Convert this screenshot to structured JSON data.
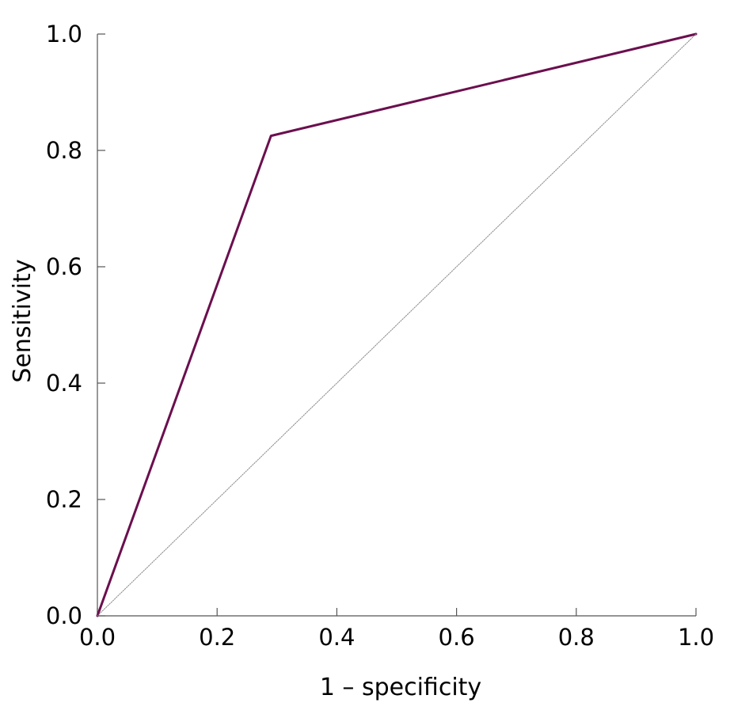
{
  "chart_data": {
    "type": "line",
    "xlabel": "1 – specificity",
    "ylabel": "Sensitivity",
    "xlim": [
      0.0,
      1.0
    ],
    "ylim": [
      0.0,
      1.0
    ],
    "x_ticks": [
      "0.0",
      "0.2",
      "0.4",
      "0.6",
      "0.8",
      "1.0"
    ],
    "y_ticks": [
      "0.0",
      "0.2",
      "0.4",
      "0.6",
      "0.8",
      "1.0"
    ],
    "grid": false,
    "series": [
      {
        "style": "solid",
        "color": "#6b0f4e",
        "x": [
          0.0,
          0.29,
          1.0
        ],
        "y": [
          0.0,
          0.825,
          1.0
        ]
      },
      {
        "style": "dotted",
        "color": "#888888",
        "x": [
          0.0,
          1.0
        ],
        "y": [
          0.0,
          1.0
        ]
      }
    ]
  }
}
